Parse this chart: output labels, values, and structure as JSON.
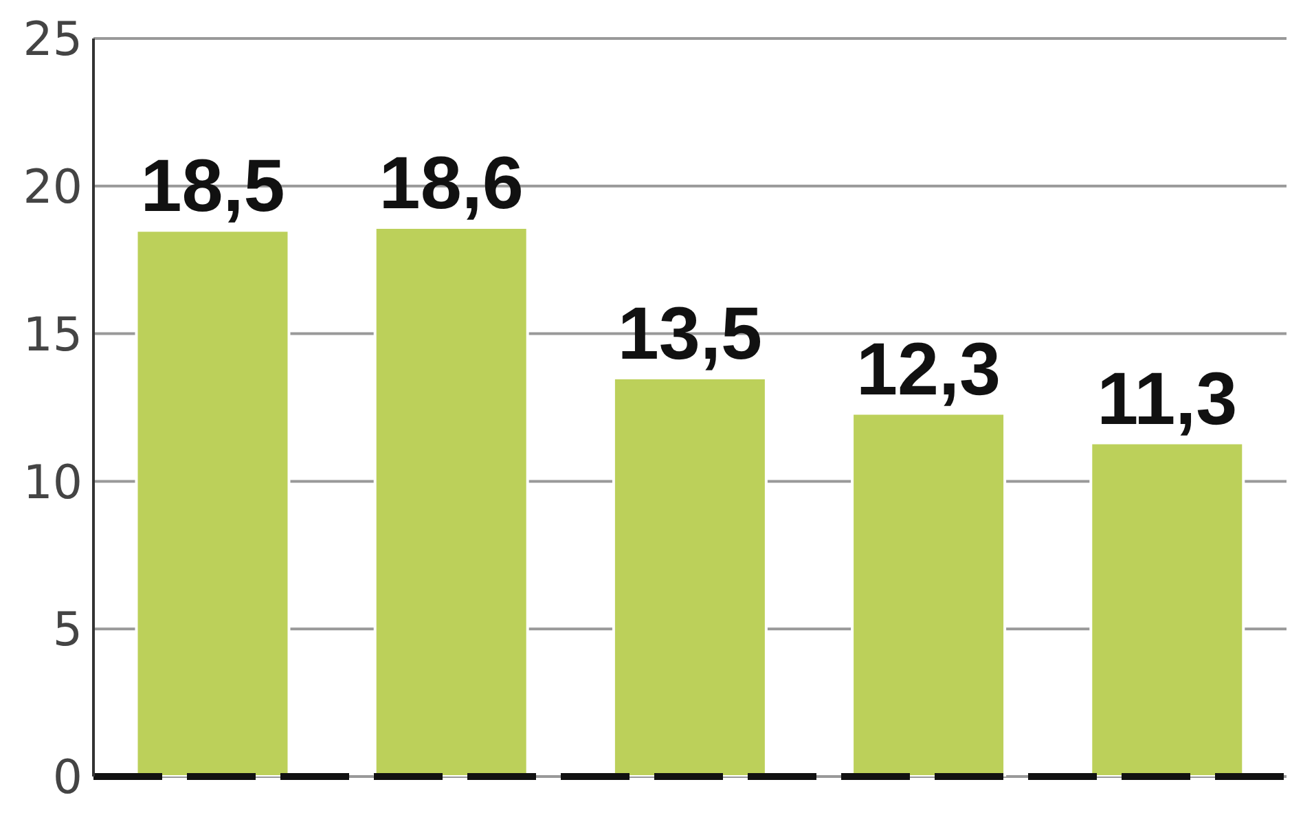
{
  "chart_data": {
    "type": "bar",
    "categories": [
      null,
      null,
      null,
      null,
      null
    ],
    "values": [
      18.5,
      18.6,
      13.5,
      12.3,
      11.3
    ],
    "value_labels": [
      "18,5",
      "18,6",
      "13,5",
      "12,3",
      "11,3"
    ],
    "color": "#bcd05a",
    "ylim": [
      0,
      25
    ],
    "yticks": [
      0,
      5,
      10,
      15,
      20,
      25
    ],
    "grid": "y"
  }
}
